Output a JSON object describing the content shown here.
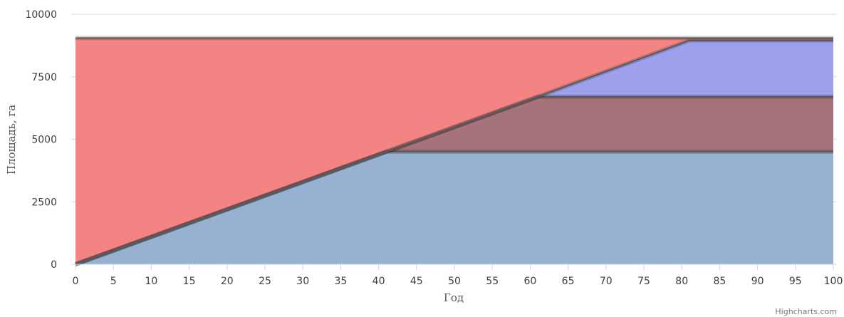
{
  "chart_data": {
    "type": "area",
    "stacking": "normal",
    "xlabel": "Год",
    "ylabel": "Площадь, га",
    "xlim": [
      0,
      100
    ],
    "ylim": [
      0,
      10000
    ],
    "x_ticks": [
      0,
      5,
      10,
      15,
      20,
      25,
      30,
      35,
      40,
      45,
      50,
      55,
      60,
      65,
      70,
      75,
      80,
      85,
      90,
      95,
      100
    ],
    "y_ticks": [
      0,
      2500,
      5000,
      7500,
      10000
    ],
    "grid": true,
    "legend": "none",
    "colors": [
      "#98b1d0",
      "#a5737a",
      "#9fa0ec",
      "#f48484"
    ],
    "series": [
      {
        "points": [
          [
            0,
            0
          ],
          [
            41,
            4500
          ],
          [
            100,
            4500
          ]
        ]
      },
      {
        "points": [
          [
            0,
            0
          ],
          [
            41,
            0
          ],
          [
            61,
            2200
          ],
          [
            100,
            2200
          ]
        ]
      },
      {
        "points": [
          [
            0,
            0
          ],
          [
            61,
            0
          ],
          [
            81,
            2250
          ],
          [
            100,
            2250
          ]
        ]
      },
      {
        "points": [
          [
            0,
            9050
          ],
          [
            41,
            4550
          ],
          [
            61,
            2350
          ],
          [
            81,
            100
          ],
          [
            100,
            100
          ]
        ]
      }
    ],
    "credits": "Highcharts.com"
  }
}
